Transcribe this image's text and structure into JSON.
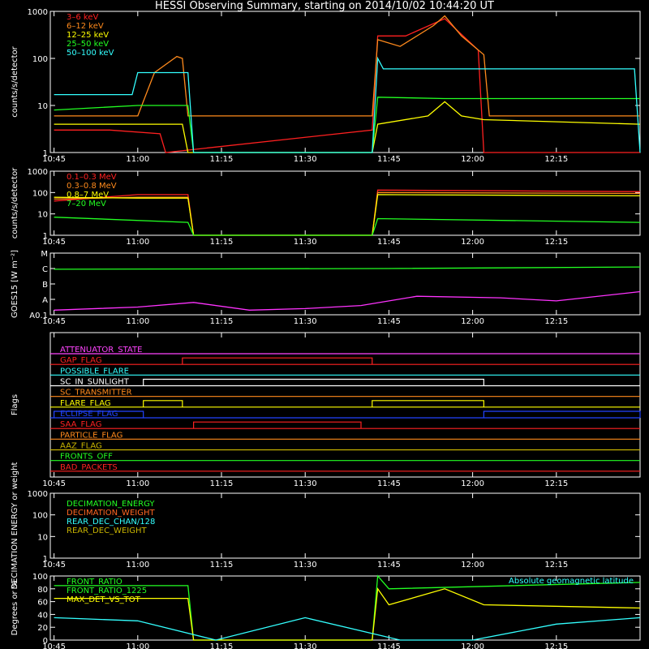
{
  "title": "HESSI Observing Summary, starting on 2014/10/02 10:44:20 UT",
  "chart_data": [
    {
      "type": "line",
      "panel": "count-rate-low",
      "ylabel": "counts/s/detector",
      "yscale": "log",
      "ylim": [
        1,
        1000
      ],
      "yticks": [
        "1",
        "10",
        "100",
        "1000"
      ],
      "x_ticks": [
        "10:45",
        "11:00",
        "11:15",
        "11:30",
        "11:45",
        "12:00",
        "12:15"
      ],
      "legend": [
        {
          "name": "3–6 keV",
          "color": "#ff2020"
        },
        {
          "name": "6–12 keV",
          "color": "#ff8a1c"
        },
        {
          "name": "12–25 keV",
          "color": "#ffff00"
        },
        {
          "name": "25–50 keV",
          "color": "#22ff22"
        },
        {
          "name": "50–100 keV",
          "color": "#33ffff"
        }
      ],
      "series": [
        {
          "name": "3–6 keV",
          "color": "#ff2020",
          "points": [
            [
              "10:45",
              3
            ],
            [
              "10:55",
              3
            ],
            [
              "11:04",
              2.5
            ],
            [
              "11:05",
              1
            ],
            [
              "11:42",
              3
            ],
            [
              "11:43",
              300
            ],
            [
              "11:48",
              300
            ],
            [
              "11:55",
              700
            ],
            [
              "12:01",
              150
            ],
            [
              "12:02",
              1
            ],
            [
              "12:30",
              1
            ]
          ]
        },
        {
          "name": "6–12 keV",
          "color": "#ff8a1c",
          "points": [
            [
              "10:45",
              6
            ],
            [
              "11:00",
              6
            ],
            [
              "11:03",
              50
            ],
            [
              "11:07",
              110
            ],
            [
              "11:08",
              100
            ],
            [
              "11:09",
              6
            ],
            [
              "11:42",
              6
            ],
            [
              "11:43",
              250
            ],
            [
              "11:47",
              180
            ],
            [
              "11:53",
              500
            ],
            [
              "11:55",
              800
            ],
            [
              "11:58",
              300
            ],
            [
              "12:02",
              120
            ],
            [
              "12:03",
              6
            ],
            [
              "12:30",
              6
            ]
          ]
        },
        {
          "name": "12–25 keV",
          "color": "#ffff00",
          "points": [
            [
              "10:45",
              4
            ],
            [
              "11:08",
              4
            ],
            [
              "11:09",
              1
            ],
            [
              "11:42",
              1
            ],
            [
              "11:43",
              4
            ],
            [
              "11:52",
              6
            ],
            [
              "11:55",
              12
            ],
            [
              "11:58",
              6
            ],
            [
              "12:02",
              5
            ],
            [
              "12:30",
              4
            ]
          ]
        },
        {
          "name": "25–50 keV",
          "color": "#22ff22",
          "points": [
            [
              "10:45",
              8
            ],
            [
              "11:00",
              10
            ],
            [
              "11:09",
              10
            ],
            [
              "11:10",
              1
            ],
            [
              "11:42",
              1
            ],
            [
              "11:43",
              15
            ],
            [
              "11:55",
              14
            ],
            [
              "12:05",
              14
            ],
            [
              "12:30",
              14
            ]
          ]
        },
        {
          "name": "50–100 keV",
          "color": "#33ffff",
          "points": [
            [
              "10:45",
              17
            ],
            [
              "10:59",
              17
            ],
            [
              "11:00",
              50
            ],
            [
              "11:09",
              50
            ],
            [
              "11:10",
              1
            ],
            [
              "11:42",
              1
            ],
            [
              "11:43",
              100
            ],
            [
              "11:44",
              60
            ],
            [
              "12:29",
              60
            ],
            [
              "12:30",
              1
            ]
          ]
        }
      ]
    },
    {
      "type": "line",
      "panel": "count-rate-high",
      "ylabel": "counts/s/detector",
      "yscale": "log",
      "ylim": [
        1,
        1000
      ],
      "yticks": [
        "1",
        "10",
        "100",
        "1000"
      ],
      "x_ticks": [
        "10:45",
        "11:00",
        "11:15",
        "11:30",
        "11:45",
        "12:00",
        "12:15"
      ],
      "legend": [
        {
          "name": "0.1–0.3 MeV",
          "color": "#ff2020"
        },
        {
          "name": "0.3–0.8 MeV",
          "color": "#ff8a1c"
        },
        {
          "name": "0.8–7 MeV",
          "color": "#ffff00"
        },
        {
          "name": "7–20 MeV",
          "color": "#22ff22"
        }
      ],
      "series": [
        {
          "name": "0.1–0.3 MeV",
          "color": "#ff2020",
          "points": [
            [
              "10:45",
              40
            ],
            [
              "11:00",
              80
            ],
            [
              "11:09",
              80
            ],
            [
              "11:10",
              1
            ],
            [
              "11:42",
              1
            ],
            [
              "11:43",
              130
            ],
            [
              "12:30",
              110
            ]
          ]
        },
        {
          "name": "0.3–0.8 MeV",
          "color": "#ff8a1c",
          "points": [
            [
              "10:45",
              50
            ],
            [
              "11:00",
              60
            ],
            [
              "11:09",
              60
            ],
            [
              "11:10",
              1
            ],
            [
              "11:42",
              1
            ],
            [
              "11:43",
              100
            ],
            [
              "12:30",
              90
            ]
          ]
        },
        {
          "name": "0.8–7 MeV",
          "color": "#ffff00",
          "points": [
            [
              "10:45",
              60
            ],
            [
              "11:00",
              55
            ],
            [
              "11:09",
              55
            ],
            [
              "11:10",
              1
            ],
            [
              "11:42",
              1
            ],
            [
              "11:43",
              80
            ],
            [
              "12:30",
              70
            ]
          ]
        },
        {
          "name": "7–20 MeV",
          "color": "#22ff22",
          "points": [
            [
              "10:45",
              7
            ],
            [
              "11:09",
              4
            ],
            [
              "11:10",
              1
            ],
            [
              "11:42",
              1
            ],
            [
              "11:43",
              6
            ],
            [
              "12:30",
              4
            ]
          ]
        }
      ]
    },
    {
      "type": "line",
      "panel": "goes",
      "ylabel": "GOES15 [W m⁻²]",
      "ylevels": [
        "A0.1",
        "A",
        "B",
        "C",
        "M"
      ],
      "x_ticks": [
        "10:45",
        "11:00",
        "11:15",
        "11:30",
        "11:45",
        "12:00",
        "12:15"
      ],
      "series": [
        {
          "name": "long channel",
          "color": "#22ff22",
          "points": [
            [
              "10:45",
              2.95
            ],
            [
              "11:45",
              3.0
            ],
            [
              "12:30",
              3.1
            ]
          ]
        },
        {
          "name": "short channel",
          "color": "#ff33ff",
          "points": [
            [
              "10:45",
              0.3
            ],
            [
              "11:00",
              0.5
            ],
            [
              "11:10",
              0.8
            ],
            [
              "11:20",
              0.3
            ],
            [
              "11:30",
              0.4
            ],
            [
              "11:40",
              0.6
            ],
            [
              "11:50",
              1.2
            ],
            [
              "12:05",
              1.1
            ],
            [
              "12:15",
              0.9
            ],
            [
              "12:30",
              1.5
            ]
          ]
        }
      ]
    },
    {
      "type": "line",
      "panel": "flags",
      "ylabel": "Flags",
      "x_ticks": [
        "10:45",
        "11:00",
        "11:15",
        "11:30",
        "11:45",
        "12:00",
        "12:15"
      ],
      "flags": [
        {
          "name": "ATTENUATOR_STATE",
          "color": "#ff44ff",
          "on": []
        },
        {
          "name": "GAP_FLAG",
          "color": "#ff2222",
          "on": [
            [
              "11:08",
              "11:42"
            ]
          ]
        },
        {
          "name": "POSSIBLE_FLARE",
          "color": "#33ffff",
          "on": []
        },
        {
          "name": "SC_IN_SUNLIGHT",
          "color": "#ffffff",
          "on": [
            [
              "11:01",
              "12:02"
            ]
          ]
        },
        {
          "name": "SC_TRANSMITTER",
          "color": "#ff8a1c",
          "on": []
        },
        {
          "name": "FLARE_FLAG",
          "color": "#ffff00",
          "on": [
            [
              "11:01",
              "11:08"
            ],
            [
              "11:42",
              "12:02"
            ]
          ]
        },
        {
          "name": "ECLIPSE_FLAG",
          "color": "#2244ff",
          "on": [
            [
              "10:45",
              "11:01"
            ],
            [
              "12:02",
              "12:30"
            ]
          ]
        },
        {
          "name": "SAA_FLAG",
          "color": "#ff2222",
          "on": [
            [
              "11:10",
              "11:40"
            ]
          ]
        },
        {
          "name": "PARTICLE_FLAG",
          "color": "#ff8a1c",
          "on": []
        },
        {
          "name": "AAZ_FLAG",
          "color": "#c8b400",
          "on": []
        },
        {
          "name": "FRONTS_OFF",
          "color": "#22ff22",
          "on": []
        },
        {
          "name": "BAD_PACKETS",
          "color": "#ff2222",
          "on": []
        }
      ]
    },
    {
      "type": "line",
      "panel": "decimation",
      "ylabel": "DECIMATION ENERGY or weight",
      "yscale": "log",
      "ylim": [
        1,
        1000
      ],
      "yticks": [
        "1",
        "10",
        "100",
        "1000"
      ],
      "x_ticks": [
        "10:45",
        "11:00",
        "11:15",
        "11:30",
        "11:45",
        "12:00",
        "12:15"
      ],
      "legend": [
        {
          "name": "DECIMATION_ENERGY",
          "color": "#22ff22"
        },
        {
          "name": "DECIMATION_WEIGHT",
          "color": "#ff6622"
        },
        {
          "name": "REAR_DEC_CHAN/128",
          "color": "#33ffff"
        },
        {
          "name": "REAR_DEC_WEIGHT",
          "color": "#c8b400"
        }
      ]
    },
    {
      "type": "line",
      "panel": "ratios",
      "ylabel": "Degrees or %",
      "ylim": [
        0,
        100
      ],
      "yticks": [
        "0",
        "20",
        "40",
        "60",
        "80",
        "100"
      ],
      "x_ticks": [
        "10:45",
        "11:00",
        "11:15",
        "11:30",
        "11:45",
        "12:00",
        "12:15"
      ],
      "legend": [
        {
          "name": "FRONT_RATIO",
          "color": "#22ff22"
        },
        {
          "name": "FRONT_RATIO_1225",
          "color": "#22ff22"
        },
        {
          "name": "MAX_DET_VS_TOT",
          "color": "#ffff00"
        },
        {
          "name": "Absolute geomagnetic latitude",
          "color": "#33ffff"
        }
      ],
      "series": [
        {
          "name": "FRONT_RATIO",
          "color": "#22ff22",
          "points": [
            [
              "10:45",
              85
            ],
            [
              "11:09",
              85
            ],
            [
              "11:10",
              0
            ],
            [
              "11:42",
              0
            ],
            [
              "11:43",
              100
            ],
            [
              "11:45",
              80
            ],
            [
              "12:30",
              90
            ]
          ]
        },
        {
          "name": "MAX_DET_VS_TOT",
          "color": "#ffff00",
          "points": [
            [
              "10:45",
              65
            ],
            [
              "11:09",
              65
            ],
            [
              "11:10",
              0
            ],
            [
              "11:42",
              0
            ],
            [
              "11:43",
              80
            ],
            [
              "11:45",
              55
            ],
            [
              "11:55",
              80
            ],
            [
              "12:02",
              55
            ],
            [
              "12:30",
              50
            ]
          ]
        },
        {
          "name": "Absolute geomagnetic latitude",
          "color": "#33ffff",
          "points": [
            [
              "10:45",
              35
            ],
            [
              "11:00",
              30
            ],
            [
              "11:14",
              0
            ],
            [
              "11:30",
              35
            ],
            [
              "11:47",
              0
            ],
            [
              "12:00",
              0
            ],
            [
              "12:15",
              25
            ],
            [
              "12:30",
              35
            ]
          ]
        }
      ]
    }
  ]
}
